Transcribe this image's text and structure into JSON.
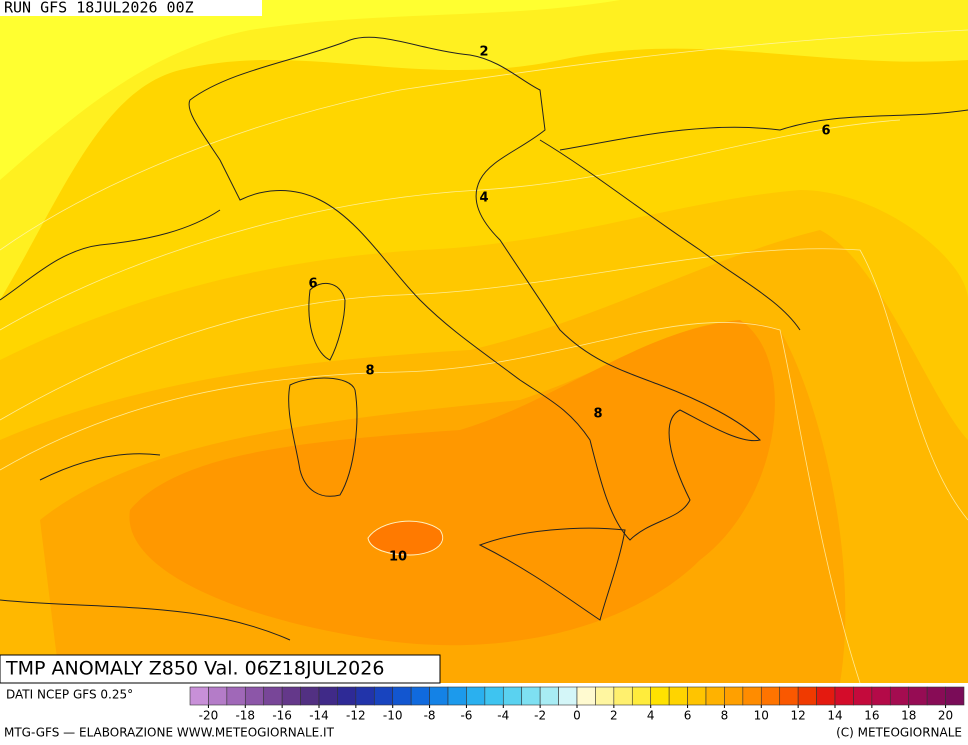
{
  "header": {
    "run": "RUN GFS 18JUL2026 00Z"
  },
  "map": {
    "title": "TMP ANOMALY Z850 Val. 06Z18JUL2026",
    "contour_labels": [
      2,
      4,
      6,
      6,
      8,
      8,
      10
    ]
  },
  "colorbar": {
    "clim": [
      -21,
      21
    ],
    "ticks": [
      -20,
      -18,
      -16,
      -14,
      -12,
      -10,
      -8,
      -6,
      -4,
      -2,
      0,
      2,
      4,
      6,
      8,
      10,
      12,
      14,
      16,
      18,
      20
    ],
    "colors": [
      "#c890d8",
      "#b47cc8",
      "#a068b8",
      "#8c56a8",
      "#784698",
      "#64388a",
      "#523082",
      "#402a88",
      "#2e2a96",
      "#2234aa",
      "#1844bf",
      "#1256d0",
      "#106ade",
      "#1482e6",
      "#1c9aec",
      "#2ab0ef",
      "#3ec4f0",
      "#5ad2f0",
      "#7ee0f2",
      "#a8ecf4",
      "#d4f6f8",
      "#fffad0",
      "#fff6a0",
      "#fff06e",
      "#ffec3c",
      "#ffe200",
      "#ffd400",
      "#ffc400",
      "#ffb200",
      "#ffa000",
      "#ff8c00",
      "#ff7400",
      "#fa5800",
      "#f03a00",
      "#e41a10",
      "#d40c2a",
      "#c40a3c",
      "#b40a48",
      "#a40c50",
      "#960c54",
      "#880c56",
      "#7a0c58"
    ]
  },
  "footer": {
    "source": "DATI NCEP GFS 0.25°",
    "left": "MTG-GFS — ELABORAZIONE WWW.METEOGIORNALE.IT",
    "right": "(C) METEOGIORNALE"
  }
}
